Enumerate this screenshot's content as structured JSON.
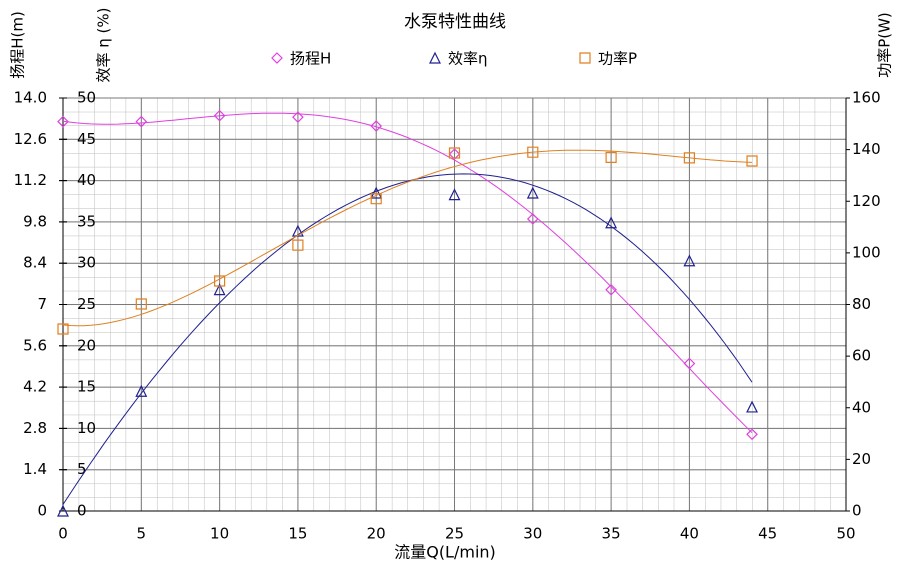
{
  "chart_data": {
    "type": "scatter",
    "title": "水泵特性曲线",
    "xlabel": "流量Q(L/min)",
    "ylabel": "扬程H(m)",
    "y2label": "效率 η (%)",
    "y3label": "功率P(W)",
    "x": [
      0,
      5,
      10,
      15,
      20,
      25,
      30,
      35,
      40,
      44
    ],
    "series": [
      {
        "name": "扬程H",
        "color": "#e040e0",
        "marker": "diamond",
        "axis": "y",
        "values": [
          13.2,
          13.2,
          13.4,
          13.35,
          13.05,
          12.1,
          9.9,
          7.5,
          5.0,
          2.6
        ]
      },
      {
        "name": "效率η",
        "color": "#202090",
        "marker": "triangle",
        "axis": "y2",
        "values": [
          0,
          14.5,
          26.8,
          33.9,
          38.5,
          38.3,
          38.5,
          34.9,
          30.3,
          12.6
        ]
      },
      {
        "name": "功率P",
        "color": "#e08020",
        "marker": "square",
        "axis": "y3",
        "values": [
          70.5,
          80.2,
          89.1,
          103,
          121,
          138.7,
          139,
          137,
          136.8,
          135.6
        ]
      }
    ],
    "xlim": [
      0,
      50
    ],
    "xticks": [
      0,
      5,
      10,
      15,
      20,
      25,
      30,
      35,
      40,
      45,
      50
    ],
    "ylim": [
      0,
      14
    ],
    "yticks": [
      0,
      1.4,
      2.8,
      4.2,
      5.6,
      7,
      8.4,
      9.8,
      11.2,
      12.6,
      {
        "value": 14,
        "label": "14.0"
      }
    ],
    "y2lim": [
      0,
      50
    ],
    "y2ticks": [
      0,
      5,
      10,
      15,
      20,
      25,
      30,
      35,
      40,
      45,
      50
    ],
    "y3lim": [
      0,
      160
    ],
    "y3ticks": [
      0,
      20,
      40,
      60,
      80,
      100,
      120,
      140,
      160
    ],
    "grid": true
  }
}
